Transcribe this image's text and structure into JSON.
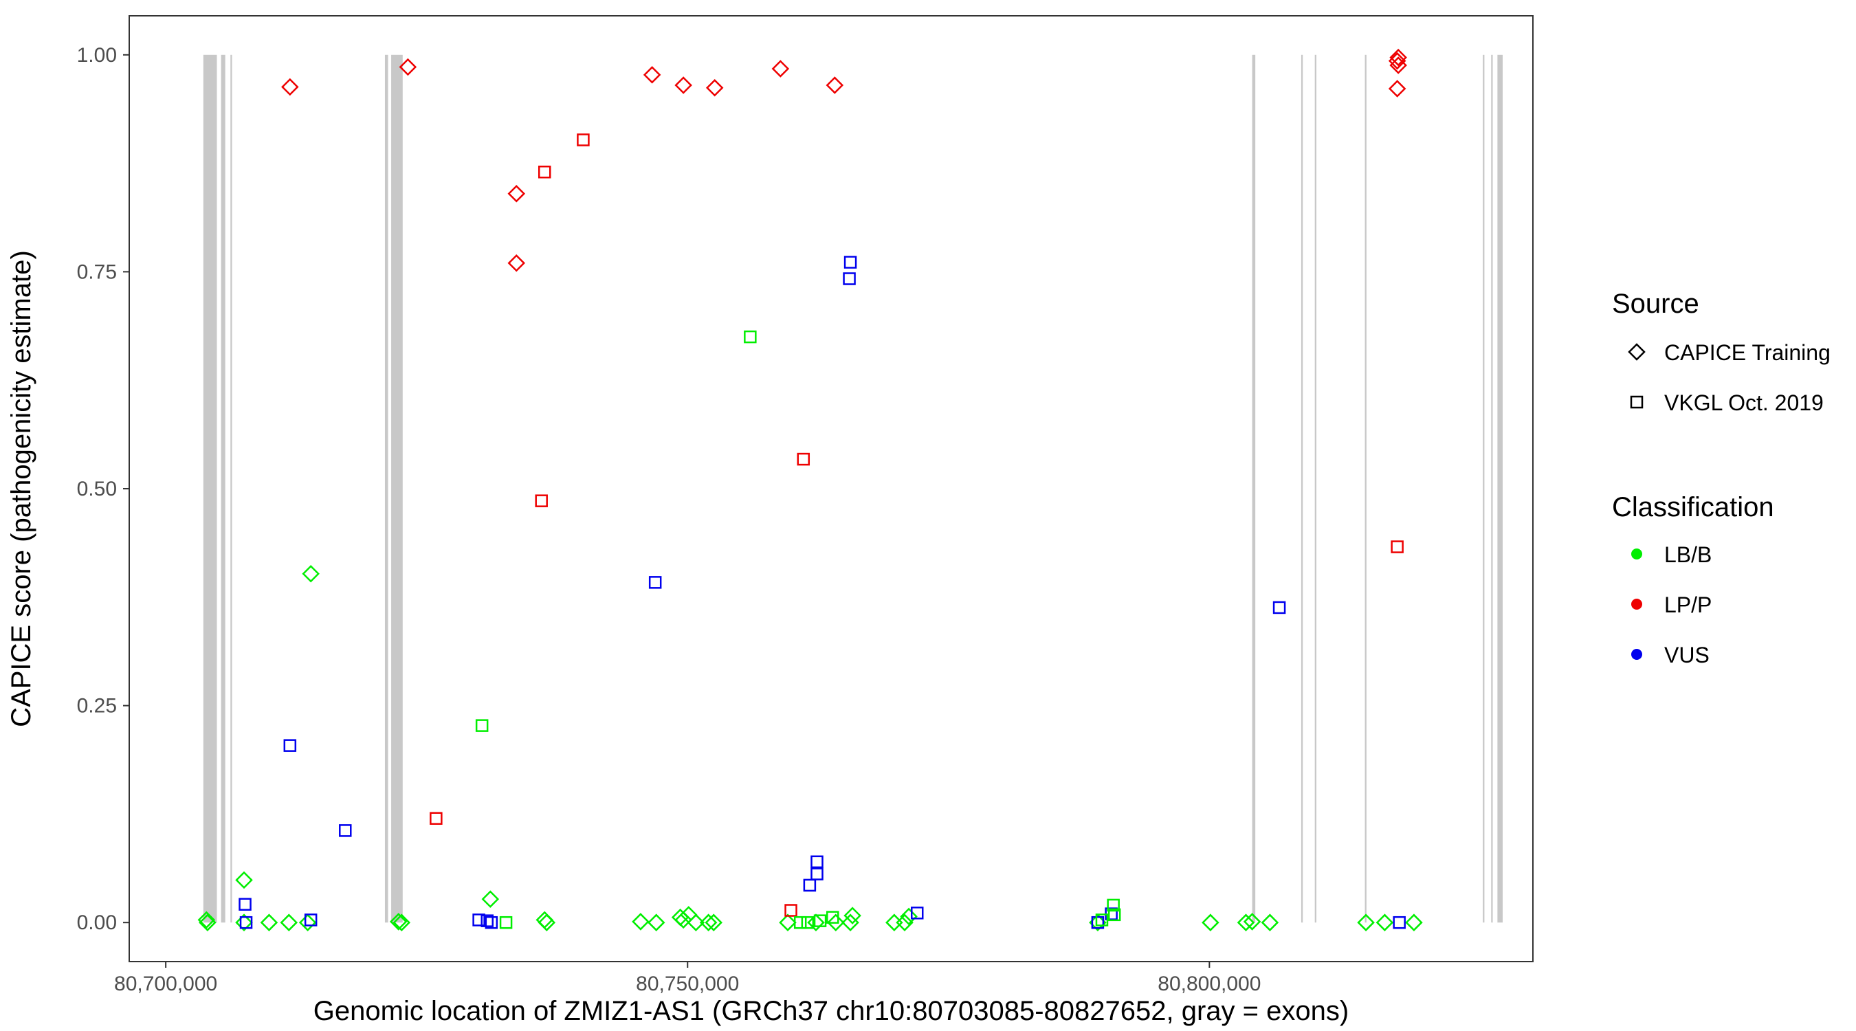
{
  "chart_data": {
    "type": "scatter",
    "title": "",
    "xlabel": "Genomic location of ZMIZ1-AS1 (GRCh37 chr10:80703085-80827652, gray = exons)",
    "ylabel": "CAPICE score (pathogenicity estimate)",
    "xlim": [
      80696500,
      80831000
    ],
    "ylim": [
      -0.045,
      1.045
    ],
    "x_ticks": [
      80700000,
      80750000,
      80800000
    ],
    "x_tick_labels": [
      "80,700,000",
      "80,750,000",
      "80,800,000"
    ],
    "y_ticks": [
      0,
      0.25,
      0.5,
      0.75,
      1.0
    ],
    "y_tick_labels": [
      "0.00",
      "0.25",
      "0.50",
      "0.75",
      "1.00"
    ],
    "grid": false,
    "exon_color": "#c8c8c8",
    "exons": [
      {
        "start": 80703600,
        "end": 80704900
      },
      {
        "start": 80705300,
        "end": 80705700
      },
      {
        "start": 80706200,
        "end": 80706350
      },
      {
        "start": 80721000,
        "end": 80721300
      },
      {
        "start": 80721600,
        "end": 80722700
      },
      {
        "start": 80804100,
        "end": 80804400
      },
      {
        "start": 80808800,
        "end": 80808950
      },
      {
        "start": 80810100,
        "end": 80810250
      },
      {
        "start": 80814900,
        "end": 80815050
      },
      {
        "start": 80826200,
        "end": 80826350
      },
      {
        "start": 80827000,
        "end": 80827150
      },
      {
        "start": 80827600,
        "end": 80828100
      }
    ],
    "legend": {
      "placement": "right",
      "source_title": "Source",
      "source_items": [
        {
          "label": "CAPICE Training",
          "shape": "diamond"
        },
        {
          "label": "VKGL Oct. 2019",
          "shape": "square"
        }
      ],
      "class_title": "Classification",
      "class_items": [
        {
          "label": "LB/B",
          "color": "#00ee00"
        },
        {
          "label": "LP/P",
          "color": "#ee0000"
        },
        {
          "label": "VUS",
          "color": "#0000ee"
        }
      ]
    },
    "series": [
      {
        "name": "CAPICE Training",
        "shape": "diamond",
        "class": "LP/P",
        "color": "#ee0000",
        "points": [
          [
            80711900,
            0.963
          ],
          [
            80723200,
            0.986
          ],
          [
            80733600,
            0.84
          ],
          [
            80733600,
            0.76
          ],
          [
            80746600,
            0.977
          ],
          [
            80749600,
            0.965
          ],
          [
            80752600,
            0.962
          ],
          [
            80758900,
            0.984
          ],
          [
            80764100,
            0.965
          ],
          [
            80818000,
            0.993
          ],
          [
            80818100,
            0.997
          ],
          [
            80818100,
            0.988
          ],
          [
            80818000,
            0.961
          ]
        ]
      },
      {
        "name": "CAPICE Training",
        "shape": "diamond",
        "class": "LB/B",
        "color": "#00ee00",
        "points": [
          [
            80703900,
            0.003
          ],
          [
            80704000,
            0.0
          ],
          [
            80707500,
            0.049
          ],
          [
            80707500,
            0.0
          ],
          [
            80709900,
            0.0
          ],
          [
            80711800,
            0.0
          ],
          [
            80713900,
            0.402
          ],
          [
            80713600,
            0.0
          ],
          [
            80722300,
            0.001
          ],
          [
            80722600,
            0.0
          ],
          [
            80731100,
            0.027
          ],
          [
            80736300,
            0.003
          ],
          [
            80736500,
            0.0
          ],
          [
            80745500,
            0.001
          ],
          [
            80747000,
            0.0
          ],
          [
            80749300,
            0.006
          ],
          [
            80749600,
            0.003
          ],
          [
            80750100,
            0.009
          ],
          [
            80750800,
            0.0
          ],
          [
            80752000,
            0.0
          ],
          [
            80752500,
            0.0
          ],
          [
            80759600,
            0.0
          ],
          [
            80762300,
            0.0
          ],
          [
            80764200,
            0.0
          ],
          [
            80765600,
            0.0
          ],
          [
            80765800,
            0.008
          ],
          [
            80769800,
            0.0
          ],
          [
            80770800,
            0.0
          ],
          [
            80771200,
            0.007
          ],
          [
            80789300,
            0.0
          ],
          [
            80800100,
            0.0
          ],
          [
            80803500,
            0.0
          ],
          [
            80804100,
            0.001
          ],
          [
            80805800,
            0.0
          ],
          [
            80815000,
            0.0
          ],
          [
            80816800,
            0.0
          ],
          [
            80819600,
            0.0
          ]
        ]
      },
      {
        "name": "VKGL Oct. 2019",
        "shape": "square",
        "class": "LP/P",
        "color": "#ee0000",
        "points": [
          [
            80725900,
            0.12
          ],
          [
            80736000,
            0.486
          ],
          [
            80736300,
            0.865
          ],
          [
            80740000,
            0.902
          ],
          [
            80759900,
            0.014
          ],
          [
            80761100,
            0.534
          ],
          [
            80818000,
            0.433
          ]
        ]
      },
      {
        "name": "VKGL Oct. 2019",
        "shape": "square",
        "class": "VUS",
        "color": "#0000ee",
        "points": [
          [
            80707600,
            0.021
          ],
          [
            80707700,
            0.0
          ],
          [
            80711900,
            0.204
          ],
          [
            80713900,
            0.003
          ],
          [
            80717200,
            0.106
          ],
          [
            80730000,
            0.003
          ],
          [
            80730800,
            0.002
          ],
          [
            80731200,
            0.0
          ],
          [
            80746900,
            0.392
          ],
          [
            80761700,
            0.043
          ],
          [
            80762400,
            0.056
          ],
          [
            80762400,
            0.07
          ],
          [
            80765500,
            0.742
          ],
          [
            80765600,
            0.761
          ],
          [
            80772000,
            0.011
          ],
          [
            80789300,
            0.0
          ],
          [
            80790600,
            0.01
          ],
          [
            80806700,
            0.363
          ],
          [
            80818200,
            0.0
          ]
        ]
      },
      {
        "name": "VKGL Oct. 2019",
        "shape": "square",
        "class": "LB/B",
        "color": "#00ee00",
        "points": [
          [
            80730300,
            0.227
          ],
          [
            80732600,
            0.0
          ],
          [
            80756000,
            0.675
          ],
          [
            80760800,
            0.0
          ],
          [
            80761500,
            0.0
          ],
          [
            80762700,
            0.002
          ],
          [
            80763900,
            0.006
          ],
          [
            80789700,
            0.003
          ],
          [
            80790800,
            0.02
          ],
          [
            80790900,
            0.009
          ]
        ]
      }
    ]
  }
}
